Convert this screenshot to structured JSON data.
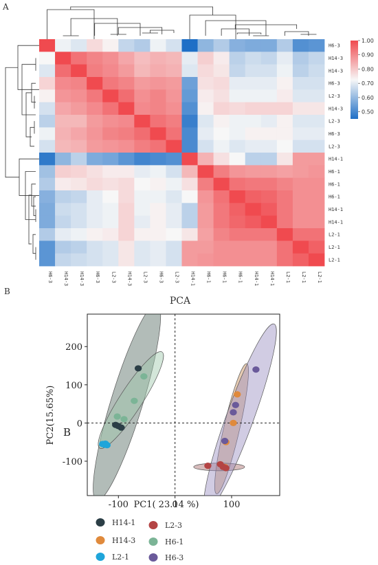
{
  "panels": {
    "a": "A",
    "b": "B"
  },
  "overlay_label": "B",
  "chart_data": [
    {
      "type": "heatmap",
      "row_labels": [
        "H6-3",
        "H14-3",
        "H14-3",
        "H6-3",
        "L2-3",
        "H14-3",
        "L2-3",
        "H6-3",
        "L2-3",
        "H14-1",
        "H6-1",
        "H6-1",
        "H6-1",
        "H14-1",
        "H14-1",
        "L2-1",
        "L2-1",
        "L2-1"
      ],
      "col_labels": [
        "H6-3",
        "H14-3",
        "H14-3",
        "H6-3",
        "L2-3",
        "H14-3",
        "L2-3",
        "H6-3",
        "L2-3",
        "H14-1",
        "H6-1",
        "H6-1",
        "H6-1",
        "H14-1",
        "H14-1",
        "L2-1",
        "L2-1",
        "L2-1"
      ],
      "colorbar": {
        "min": 0.45,
        "max": 1.0,
        "ticks": [
          "1.00",
          "0.90",
          "0.80",
          "0.70",
          "0.60",
          "0.50"
        ],
        "low_color": "#1f6fc6",
        "mid_color": "#f7f7f7",
        "high_color": "#f04a4f"
      },
      "values": [
        [
          1.0,
          0.69,
          0.67,
          0.75,
          0.71,
          0.64,
          0.62,
          0.69,
          0.66,
          0.45,
          0.58,
          0.62,
          0.57,
          0.56,
          0.56,
          0.62,
          0.51,
          0.52
        ],
        [
          0.7,
          1.0,
          0.93,
          0.9,
          0.88,
          0.84,
          0.8,
          0.82,
          0.81,
          0.68,
          0.77,
          0.72,
          0.63,
          0.65,
          0.64,
          0.68,
          0.62,
          0.64
        ],
        [
          0.67,
          0.94,
          1.0,
          0.91,
          0.89,
          0.86,
          0.81,
          0.83,
          0.82,
          0.67,
          0.75,
          0.73,
          0.64,
          0.66,
          0.66,
          0.69,
          0.63,
          0.65
        ],
        [
          0.76,
          0.89,
          0.9,
          1.0,
          0.92,
          0.9,
          0.86,
          0.87,
          0.86,
          0.54,
          0.74,
          0.75,
          0.68,
          0.68,
          0.68,
          0.71,
          0.66,
          0.66
        ],
        [
          0.71,
          0.87,
          0.88,
          0.92,
          1.0,
          0.94,
          0.88,
          0.9,
          0.87,
          0.53,
          0.72,
          0.74,
          0.69,
          0.69,
          0.69,
          0.72,
          0.67,
          0.67
        ],
        [
          0.66,
          0.84,
          0.86,
          0.89,
          0.93,
          1.0,
          0.89,
          0.9,
          0.88,
          0.51,
          0.71,
          0.76,
          0.75,
          0.76,
          0.76,
          0.76,
          0.73,
          0.73
        ],
        [
          0.63,
          0.81,
          0.81,
          0.86,
          0.88,
          0.89,
          1.0,
          0.93,
          0.91,
          0.48,
          0.67,
          0.71,
          0.69,
          0.69,
          0.68,
          0.71,
          0.67,
          0.67
        ],
        [
          0.69,
          0.82,
          0.84,
          0.87,
          0.9,
          0.91,
          0.94,
          1.0,
          0.93,
          0.5,
          0.68,
          0.7,
          0.69,
          0.71,
          0.71,
          0.71,
          0.68,
          0.68
        ],
        [
          0.66,
          0.81,
          0.82,
          0.86,
          0.87,
          0.88,
          0.91,
          0.93,
          1.0,
          0.5,
          0.66,
          0.69,
          0.67,
          0.68,
          0.68,
          0.7,
          0.66,
          0.66
        ],
        [
          0.47,
          0.58,
          0.63,
          0.56,
          0.55,
          0.52,
          0.49,
          0.5,
          0.51,
          1.0,
          0.82,
          0.74,
          0.7,
          0.63,
          0.63,
          0.73,
          0.86,
          0.86
        ],
        [
          0.6,
          0.77,
          0.76,
          0.74,
          0.72,
          0.72,
          0.68,
          0.69,
          0.66,
          0.81,
          1.0,
          0.91,
          0.87,
          0.86,
          0.86,
          0.85,
          0.86,
          0.87
        ],
        [
          0.62,
          0.72,
          0.73,
          0.75,
          0.74,
          0.75,
          0.7,
          0.71,
          0.69,
          0.74,
          0.91,
          1.0,
          0.93,
          0.92,
          0.92,
          0.9,
          0.88,
          0.88
        ],
        [
          0.57,
          0.63,
          0.64,
          0.68,
          0.7,
          0.75,
          0.69,
          0.69,
          0.67,
          0.7,
          0.87,
          0.93,
          1.0,
          0.96,
          0.95,
          0.92,
          0.88,
          0.88
        ],
        [
          0.56,
          0.65,
          0.66,
          0.68,
          0.69,
          0.76,
          0.69,
          0.71,
          0.68,
          0.63,
          0.86,
          0.92,
          0.96,
          1.0,
          0.97,
          0.92,
          0.88,
          0.88
        ],
        [
          0.56,
          0.64,
          0.66,
          0.68,
          0.69,
          0.76,
          0.68,
          0.71,
          0.68,
          0.63,
          0.86,
          0.92,
          0.95,
          0.97,
          1.0,
          0.92,
          0.88,
          0.88
        ],
        [
          0.62,
          0.68,
          0.69,
          0.71,
          0.72,
          0.76,
          0.71,
          0.71,
          0.7,
          0.73,
          0.85,
          0.9,
          0.92,
          0.92,
          0.92,
          1.0,
          0.93,
          0.93
        ],
        [
          0.52,
          0.62,
          0.63,
          0.66,
          0.67,
          0.73,
          0.67,
          0.68,
          0.66,
          0.86,
          0.86,
          0.88,
          0.88,
          0.88,
          0.88,
          0.93,
          1.0,
          0.96
        ],
        [
          0.52,
          0.64,
          0.65,
          0.66,
          0.67,
          0.73,
          0.67,
          0.68,
          0.66,
          0.86,
          0.87,
          0.88,
          0.88,
          0.88,
          0.88,
          0.93,
          0.96,
          1.0
        ]
      ]
    },
    {
      "type": "scatter",
      "title": "PCA",
      "xlabel": "PC1( 23.14 %)",
      "ylabel": "PC2(15.65%)",
      "xlim": [
        -155,
        185
      ],
      "ylim": [
        -190,
        285
      ],
      "xticks": [
        -100,
        0,
        100
      ],
      "yticks": [
        -100,
        0,
        100,
        200
      ],
      "series": [
        {
          "name": "H14-1",
          "color": "#2b3e46",
          "points": [
            [
              -65,
              143
            ],
            [
              -105,
              -5
            ],
            [
              -100,
              -8
            ],
            [
              -95,
              -12
            ]
          ],
          "ellipse": {
            "cx": -85,
            "cy": 55,
            "rx": 28,
            "ry": 270,
            "angle": 17,
            "fill": "#556b62"
          }
        },
        {
          "name": "H14-3",
          "color": "#e08a3c",
          "points": [
            [
              110,
              75
            ],
            [
              103,
              0
            ],
            [
              90,
              -50
            ],
            [
              88,
              -115
            ]
          ],
          "ellipse": {
            "cx": 100,
            "cy": -15,
            "rx": 14,
            "ry": 175,
            "angle": 13,
            "fill": "#c98e56"
          }
        },
        {
          "name": "L2-1",
          "color": "#1fa5da",
          "points": [
            [
              -128,
              -55
            ],
            [
              -124,
              -57
            ],
            [
              -120,
              -58
            ],
            [
              -123,
              -54
            ]
          ],
          "ellipse": null
        },
        {
          "name": "L2-3",
          "color": "#b44444",
          "points": [
            [
              58,
              -112
            ],
            [
              80,
              -108
            ],
            [
              85,
              -115
            ],
            [
              90,
              -118
            ]
          ],
          "ellipse": {
            "cx": 78,
            "cy": -115,
            "rx": 45,
            "ry": 10,
            "angle": 0,
            "fill": "#a66a6a"
          }
        },
        {
          "name": "H6-1",
          "color": "#7bb496",
          "points": [
            [
              -55,
              122
            ],
            [
              -72,
              58
            ],
            [
              -102,
              17
            ],
            [
              -90,
              10
            ]
          ],
          "ellipse": {
            "cx": -78,
            "cy": 60,
            "rx": 20,
            "ry": 150,
            "angle": 33,
            "fill": "#9ec8aa"
          }
        },
        {
          "name": "H6-3",
          "color": "#6a5a9a",
          "points": [
            [
              143,
              140
            ],
            [
              107,
              47
            ],
            [
              103,
              28
            ],
            [
              88,
              -47
            ]
          ],
          "ellipse": {
            "cx": 115,
            "cy": 15,
            "rx": 24,
            "ry": 260,
            "angle": 20,
            "fill": "#9a8fc0"
          }
        }
      ]
    }
  ]
}
